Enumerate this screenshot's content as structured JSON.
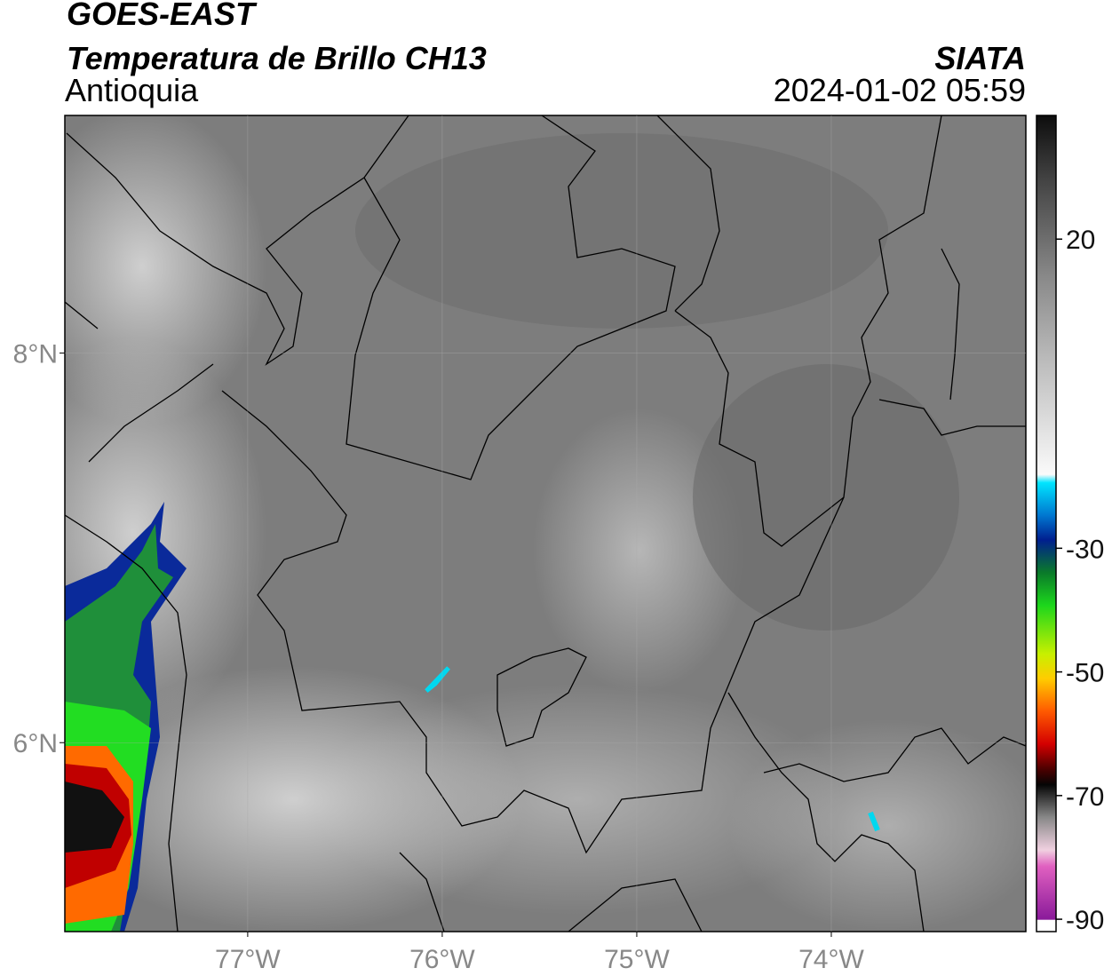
{
  "header": {
    "title": "GOES-EAST",
    "subtitle": "Temperatura de Brillo CH13",
    "region": "Antioquia",
    "source": "SIATA",
    "datetime": "2024-01-02 05:59"
  },
  "map": {
    "xlim": [
      -77.94,
      -73.0
    ],
    "ylim": [
      5.03,
      9.22
    ],
    "xticks": [
      {
        "value": -77,
        "label": "77°W"
      },
      {
        "value": -76,
        "label": "76°W"
      },
      {
        "value": -75,
        "label": "75°W"
      },
      {
        "value": -74,
        "label": "74°W"
      }
    ],
    "yticks": [
      {
        "value": 8,
        "label": "8°N"
      },
      {
        "value": 6,
        "label": "6°N"
      }
    ]
  },
  "colorbar": {
    "lim": [
      -92,
      40
    ],
    "ticks": [
      20,
      -30,
      -50,
      -70,
      -90
    ]
  }
}
